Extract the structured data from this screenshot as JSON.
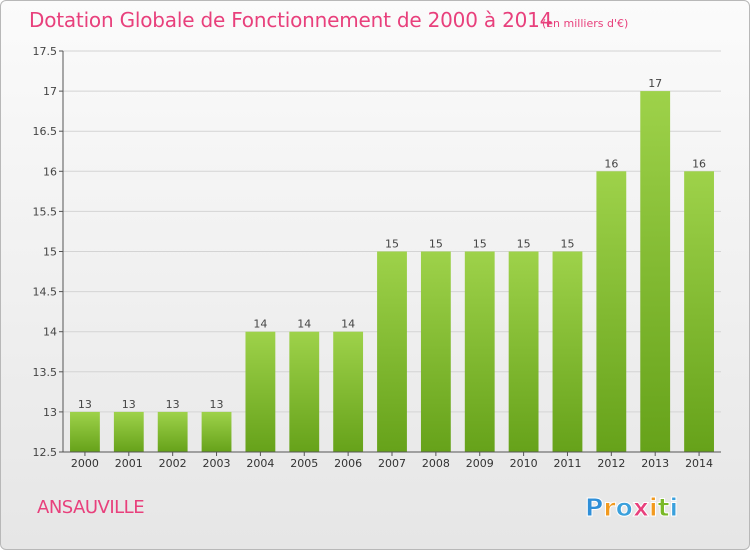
{
  "chart_data": {
    "type": "bar",
    "title": "Dotation Globale de Fonctionnement de 2000 à 2014",
    "subtitle": "(en milliers d'€)",
    "categories": [
      "2000",
      "2001",
      "2002",
      "2003",
      "2004",
      "2005",
      "2006",
      "2007",
      "2008",
      "2009",
      "2010",
      "2011",
      "2012",
      "2013",
      "2014"
    ],
    "values": [
      13,
      13,
      13,
      13,
      14,
      14,
      14,
      15,
      15,
      15,
      15,
      15,
      16,
      17,
      16
    ],
    "data_labels": [
      "13",
      "13",
      "13",
      "13",
      "14",
      "14",
      "14",
      "15",
      "15",
      "15",
      "15",
      "15",
      "16",
      "17",
      "16"
    ],
    "ylim": [
      12.5,
      17.5
    ],
    "yticks": [
      12.5,
      13,
      13.5,
      14,
      14.5,
      15,
      15.5,
      16,
      16.5,
      17,
      17.5
    ],
    "ytick_labels": [
      "12.5",
      "13",
      "13.5",
      "14",
      "14.5",
      "15",
      "15.5",
      "16",
      "16.5",
      "17",
      "17.5"
    ],
    "grid": true,
    "xlabel": "",
    "ylabel": "",
    "colors": {
      "bar_light": "#9ed24a",
      "bar_dark": "#66a21a",
      "title": "#e8407c",
      "grid": "#d4d4d4",
      "axis": "#555555"
    }
  },
  "footer": {
    "commune": "ANSAUVILLE",
    "logo_text": "Proxiti"
  }
}
